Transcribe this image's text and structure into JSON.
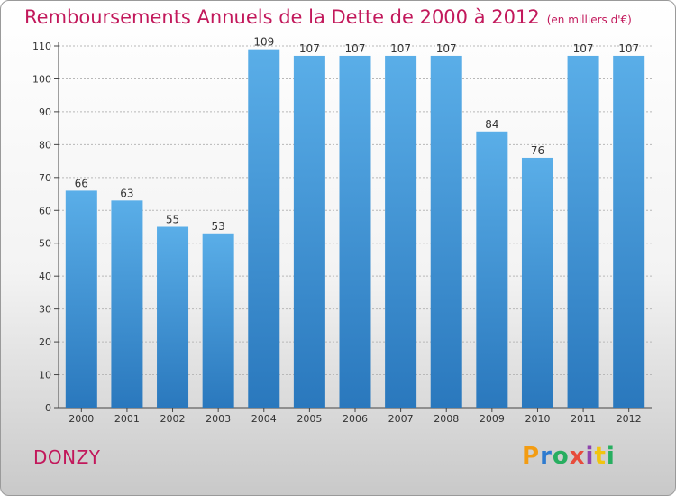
{
  "header": {
    "title": "Remboursements Annuels de la Dette de 2000 à 2012",
    "unit": "(en milliers d'€)"
  },
  "footer": {
    "commune": "DONZY",
    "brand": "Proxiti",
    "brand_colors": [
      "#f39c12",
      "#2e7bcf",
      "#27ae60",
      "#e74c3c",
      "#8e44ad",
      "#f1c40f",
      "#27ae60"
    ]
  },
  "colors": {
    "title": "#c2185b",
    "bar_top": "#5aaee8",
    "bar_bottom": "#2a78bd"
  },
  "chart_data": {
    "type": "bar",
    "categories": [
      "2000",
      "2001",
      "2002",
      "2003",
      "2004",
      "2005",
      "2006",
      "2007",
      "2008",
      "2009",
      "2010",
      "2011",
      "2012"
    ],
    "values": [
      66,
      63,
      55,
      53,
      109,
      107,
      107,
      107,
      107,
      84,
      76,
      107,
      107
    ],
    "ylim": [
      0,
      110
    ],
    "yticks": [
      0,
      10,
      20,
      30,
      40,
      50,
      60,
      70,
      80,
      90,
      100,
      110
    ],
    "grid": true,
    "data_labels": true
  }
}
